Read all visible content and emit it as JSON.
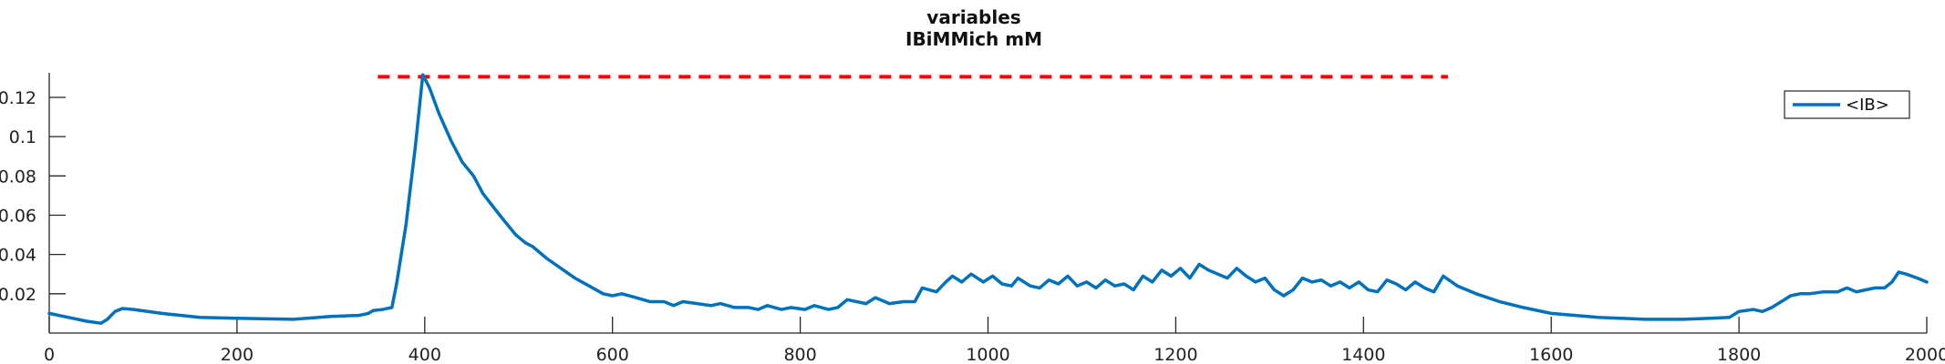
{
  "chart_data": {
    "type": "line",
    "title": [
      "variables",
      "IBiMMich mM"
    ],
    "xlabel": "",
    "ylabel": "",
    "xlim": [
      0,
      2000
    ],
    "ylim": [
      0,
      0.1325
    ],
    "grid": false,
    "legend": {
      "position": "top-right",
      "entries": [
        "<IB>"
      ]
    },
    "x_ticks": [
      0,
      200,
      400,
      600,
      800,
      1000,
      1200,
      1400,
      1600,
      1800,
      2000
    ],
    "x_tick_labels": [
      "0",
      "200",
      "400",
      "600",
      "800",
      "1000",
      "1200",
      "1400",
      "1600",
      "1800",
      "2000"
    ],
    "y_ticks": [
      0.02,
      0.04,
      0.06,
      0.08,
      0.1,
      0.12
    ],
    "y_tick_labels": [
      "0.02",
      "0.04",
      "0.06",
      "0.08",
      "0.1",
      "0.12"
    ],
    "threshold": {
      "y": 0.1305,
      "x_start": 350,
      "x_end": 1490,
      "color": "#ff0000",
      "style": "dashed"
    },
    "series": [
      {
        "name": "<IB>",
        "color": "#0072bd",
        "points": [
          [
            0,
            0.01
          ],
          [
            20,
            0.008
          ],
          [
            40,
            0.006
          ],
          [
            55,
            0.005
          ],
          [
            62,
            0.007
          ],
          [
            70,
            0.011
          ],
          [
            78,
            0.0125
          ],
          [
            90,
            0.012
          ],
          [
            120,
            0.01
          ],
          [
            160,
            0.008
          ],
          [
            200,
            0.0075
          ],
          [
            260,
            0.007
          ],
          [
            300,
            0.0085
          ],
          [
            330,
            0.009
          ],
          [
            340,
            0.01
          ],
          [
            345,
            0.0115
          ],
          [
            355,
            0.012
          ],
          [
            365,
            0.013
          ],
          [
            370,
            0.025
          ],
          [
            380,
            0.055
          ],
          [
            390,
            0.095
          ],
          [
            398,
            0.1315
          ],
          [
            405,
            0.125
          ],
          [
            415,
            0.112
          ],
          [
            428,
            0.098
          ],
          [
            440,
            0.087
          ],
          [
            452,
            0.08
          ],
          [
            462,
            0.071
          ],
          [
            475,
            0.063
          ],
          [
            485,
            0.057
          ],
          [
            497,
            0.05
          ],
          [
            507,
            0.046
          ],
          [
            515,
            0.044
          ],
          [
            530,
            0.038
          ],
          [
            545,
            0.033
          ],
          [
            560,
            0.028
          ],
          [
            575,
            0.024
          ],
          [
            590,
            0.02
          ],
          [
            600,
            0.019
          ],
          [
            610,
            0.02
          ],
          [
            625,
            0.018
          ],
          [
            640,
            0.016
          ],
          [
            655,
            0.016
          ],
          [
            665,
            0.014
          ],
          [
            675,
            0.016
          ],
          [
            690,
            0.015
          ],
          [
            705,
            0.014
          ],
          [
            715,
            0.015
          ],
          [
            730,
            0.013
          ],
          [
            745,
            0.013
          ],
          [
            755,
            0.012
          ],
          [
            765,
            0.014
          ],
          [
            780,
            0.012
          ],
          [
            790,
            0.013
          ],
          [
            805,
            0.012
          ],
          [
            815,
            0.014
          ],
          [
            830,
            0.012
          ],
          [
            840,
            0.013
          ],
          [
            850,
            0.017
          ],
          [
            860,
            0.016
          ],
          [
            870,
            0.015
          ],
          [
            880,
            0.018
          ],
          [
            895,
            0.015
          ],
          [
            910,
            0.016
          ],
          [
            922,
            0.016
          ],
          [
            930,
            0.023
          ],
          [
            945,
            0.021
          ],
          [
            955,
            0.026
          ],
          [
            962,
            0.029
          ],
          [
            972,
            0.026
          ],
          [
            982,
            0.03
          ],
          [
            995,
            0.026
          ],
          [
            1005,
            0.029
          ],
          [
            1015,
            0.025
          ],
          [
            1025,
            0.024
          ],
          [
            1032,
            0.028
          ],
          [
            1045,
            0.024
          ],
          [
            1055,
            0.023
          ],
          [
            1065,
            0.027
          ],
          [
            1075,
            0.025
          ],
          [
            1085,
            0.029
          ],
          [
            1095,
            0.024
          ],
          [
            1105,
            0.026
          ],
          [
            1115,
            0.023
          ],
          [
            1125,
            0.027
          ],
          [
            1135,
            0.024
          ],
          [
            1145,
            0.025
          ],
          [
            1155,
            0.022
          ],
          [
            1165,
            0.029
          ],
          [
            1175,
            0.026
          ],
          [
            1185,
            0.032
          ],
          [
            1195,
            0.029
          ],
          [
            1205,
            0.033
          ],
          [
            1215,
            0.028
          ],
          [
            1225,
            0.035
          ],
          [
            1235,
            0.032
          ],
          [
            1245,
            0.03
          ],
          [
            1255,
            0.028
          ],
          [
            1265,
            0.033
          ],
          [
            1275,
            0.029
          ],
          [
            1285,
            0.026
          ],
          [
            1295,
            0.028
          ],
          [
            1305,
            0.022
          ],
          [
            1315,
            0.019
          ],
          [
            1325,
            0.022
          ],
          [
            1335,
            0.028
          ],
          [
            1345,
            0.026
          ],
          [
            1355,
            0.027
          ],
          [
            1365,
            0.024
          ],
          [
            1375,
            0.026
          ],
          [
            1385,
            0.023
          ],
          [
            1395,
            0.026
          ],
          [
            1405,
            0.022
          ],
          [
            1415,
            0.021
          ],
          [
            1425,
            0.027
          ],
          [
            1435,
            0.025
          ],
          [
            1445,
            0.022
          ],
          [
            1455,
            0.026
          ],
          [
            1465,
            0.023
          ],
          [
            1475,
            0.021
          ],
          [
            1485,
            0.029
          ],
          [
            1500,
            0.024
          ],
          [
            1520,
            0.02
          ],
          [
            1545,
            0.016
          ],
          [
            1570,
            0.013
          ],
          [
            1600,
            0.01
          ],
          [
            1650,
            0.008
          ],
          [
            1700,
            0.007
          ],
          [
            1740,
            0.007
          ],
          [
            1770,
            0.0075
          ],
          [
            1790,
            0.008
          ],
          [
            1800,
            0.011
          ],
          [
            1815,
            0.012
          ],
          [
            1825,
            0.011
          ],
          [
            1835,
            0.013
          ],
          [
            1845,
            0.016
          ],
          [
            1855,
            0.019
          ],
          [
            1865,
            0.02
          ],
          [
            1875,
            0.02
          ],
          [
            1890,
            0.021
          ],
          [
            1905,
            0.021
          ],
          [
            1915,
            0.023
          ],
          [
            1925,
            0.021
          ],
          [
            1935,
            0.022
          ],
          [
            1945,
            0.023
          ],
          [
            1955,
            0.023
          ],
          [
            1963,
            0.026
          ],
          [
            1970,
            0.031
          ],
          [
            1978,
            0.03
          ],
          [
            1990,
            0.028
          ],
          [
            2000,
            0.026
          ]
        ]
      }
    ]
  }
}
